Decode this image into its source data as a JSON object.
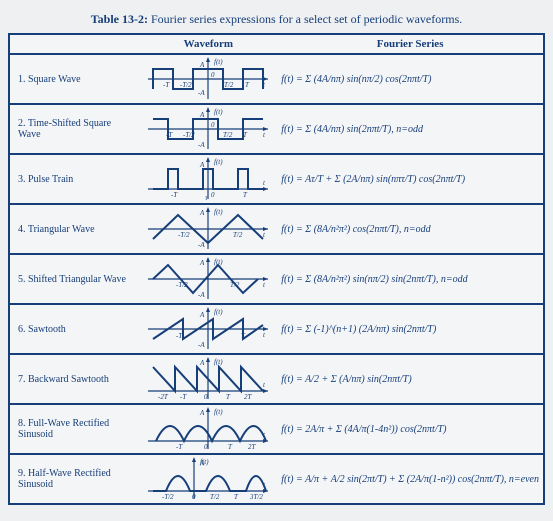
{
  "title_bold": "Table 13-2:",
  "title_rest": " Fourier series expressions for a select set of periodic waveforms.",
  "headers": {
    "waveform": "Waveform",
    "fourier": "Fourier Series"
  },
  "rows": [
    {
      "name": "1. Square Wave",
      "formula": "f(t) = Σ (4A/nπ) sin(nπ/2) cos(2nπt/T)",
      "wave": "square",
      "labels": [
        "A",
        "f(t)",
        "0",
        "-T",
        "-T/2",
        "T/2",
        "T",
        "-A",
        "t"
      ]
    },
    {
      "name": "2. Time-Shifted Square Wave",
      "formula": "f(t) = Σ (4A/nπ) sin(2nπt/T),  n=odd",
      "wave": "shifted-square",
      "labels": [
        "A",
        "f(t)",
        "0",
        "-T",
        "-T/2",
        "T/2",
        "T",
        "-A",
        "t"
      ]
    },
    {
      "name": "3. Pulse Train",
      "formula": "f(t) = Aτ/T + Σ (2A/nπ) sin(nπτ/T) cos(2nπt/T)",
      "wave": "pulse",
      "labels": [
        "A",
        "f(t)",
        "0",
        "-T",
        "T",
        "t",
        "τ"
      ]
    },
    {
      "name": "4. Triangular Wave",
      "formula": "f(t) = Σ (8A/n²π²) cos(2nπt/T),  n=odd",
      "wave": "triangle",
      "labels": [
        "A",
        "f(t)",
        "-A",
        "-T/2",
        "T/2",
        "t"
      ]
    },
    {
      "name": "5. Shifted Triangular Wave",
      "formula": "f(t) = Σ (8A/n²π²) sin(nπ/2) sin(2nπt/T),  n=odd",
      "wave": "shifted-triangle",
      "labels": [
        "A",
        "f(t)",
        "-A",
        "-T/2",
        "T/2",
        "t"
      ]
    },
    {
      "name": "6. Sawtooth",
      "formula": "f(t) = Σ (-1)^(n+1) (2A/nπ) sin(2nπt/T)",
      "wave": "sawtooth",
      "labels": [
        "A",
        "f(t)",
        "-A",
        "-T",
        "T",
        "t"
      ]
    },
    {
      "name": "7. Backward Sawtooth",
      "formula": "f(t) = A/2 + Σ (A/nπ) sin(2nπt/T)",
      "wave": "backward-sawtooth",
      "labels": [
        "A",
        "f(t)",
        "-2T",
        "-T",
        "0",
        "T",
        "2T",
        "t"
      ]
    },
    {
      "name": "8. Full-Wave Rectified Sinusoid",
      "formula": "f(t) = 2A/π + Σ (4A/π(1-4n²)) cos(2nπt/T)",
      "wave": "full-rect",
      "labels": [
        "A",
        "f(t)",
        "-T",
        "0",
        "T",
        "2T",
        "t"
      ]
    },
    {
      "name": "9. Half-Wave Rectified Sinusoid",
      "formula": "f(t) = A/π + A/2 sin(2πt/T) + Σ (2A/π(1-n²)) cos(2nπt/T), n=even",
      "wave": "half-rect",
      "labels": [
        "A",
        "f(t)",
        "-T/2",
        "0",
        "T/2",
        "T",
        "3T/2",
        "t"
      ]
    }
  ],
  "styling": {
    "line_color": "#163e79",
    "background": "#f4f5f7",
    "outer_background": "#eef0f2",
    "border_width": 2,
    "wave_stroke_width": 2,
    "svg_size": {
      "w": 120,
      "h": 44
    },
    "label_fontsize": 7,
    "name_fontsize": 10,
    "formula_fontsize": 10,
    "title_fontsize": 12
  }
}
